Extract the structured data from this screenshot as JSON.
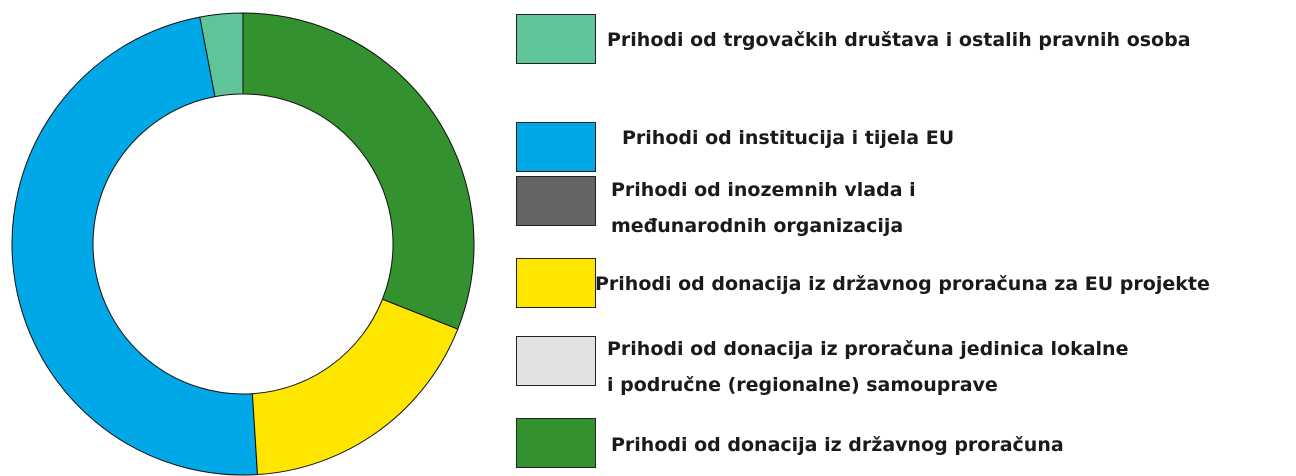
{
  "chart_data": {
    "type": "donut",
    "series": [
      {
        "name": "Prihodi od trgovačkih društava i ostalih pravnih osoba",
        "color": "#5fc498",
        "value": 3
      },
      {
        "name": "Prihodi od institucija i tijela EU",
        "color": "#00a8e8",
        "value": 48
      },
      {
        "name": "Prihodi od inozemnih vlada i\nmeđunarodnih organizacija",
        "color": "#636466",
        "value": 0
      },
      {
        "name": "Prihodi od donacija iz državnog proračuna za EU projekte",
        "color": "#ffe600",
        "value": 18
      },
      {
        "name": "Prihodi od donacija iz proračuna jedinica lokalne\ni područne (regionalne) samouprave",
        "color": "#e1e2e3",
        "value": 0
      },
      {
        "name": "Prihodi od donacija iz državnog proračuna",
        "color": "#33912f",
        "value": 31
      }
    ]
  }
}
